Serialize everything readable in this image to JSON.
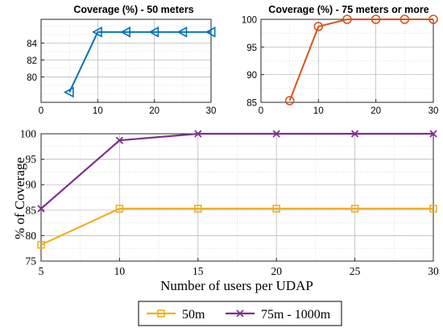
{
  "chart_data": [
    {
      "id": "top-left",
      "type": "line",
      "title": "Coverage (%) - 50 meters",
      "xlabel": "",
      "ylabel": "",
      "xlim": [
        0,
        30
      ],
      "ylim": [
        77,
        86.8
      ],
      "xticks": [
        0,
        10,
        20,
        30
      ],
      "yticks": [
        80,
        82,
        84
      ],
      "grid": true,
      "series": [
        {
          "x": [
            5,
            10,
            15,
            20,
            25,
            30
          ],
          "values": [
            78.2,
            85.3,
            85.3,
            85.3,
            85.3,
            85.3
          ],
          "color": "#0072BD",
          "marker": "triangle-left"
        }
      ]
    },
    {
      "id": "top-right",
      "type": "line",
      "title": "Coverage (%) - 75 meters or more",
      "xlabel": "",
      "ylabel": "",
      "xlim": [
        0,
        30
      ],
      "ylim": [
        85,
        100
      ],
      "xticks": [
        0,
        10,
        20,
        30
      ],
      "yticks": [
        85,
        90,
        95,
        100
      ],
      "grid": true,
      "series": [
        {
          "x": [
            5,
            10,
            15,
            20,
            25,
            30
          ],
          "values": [
            85.3,
            98.7,
            100,
            100,
            100,
            100
          ],
          "color": "#D95319",
          "marker": "circle"
        }
      ]
    },
    {
      "id": "bottom",
      "type": "line",
      "title": "",
      "xlabel": "Number of users per UDAP",
      "ylabel": "% of Coverage",
      "xlim": [
        5,
        30
      ],
      "ylim": [
        75,
        100
      ],
      "xticks": [
        5,
        10,
        15,
        20,
        25,
        30
      ],
      "yticks": [
        75,
        80,
        85,
        90,
        95,
        100
      ],
      "grid": true,
      "legend_position": "bottom",
      "series": [
        {
          "name": "50m",
          "x": [
            5,
            10,
            15,
            20,
            25,
            30
          ],
          "values": [
            78.2,
            85.3,
            85.3,
            85.3,
            85.3,
            85.3
          ],
          "color": "#EDB120",
          "marker": "square"
        },
        {
          "name": "75m - 1000m",
          "x": [
            5,
            10,
            15,
            20,
            25,
            30
          ],
          "values": [
            85.3,
            98.7,
            100,
            100,
            100,
            100
          ],
          "color": "#7E2F8E",
          "marker": "x"
        }
      ]
    }
  ]
}
